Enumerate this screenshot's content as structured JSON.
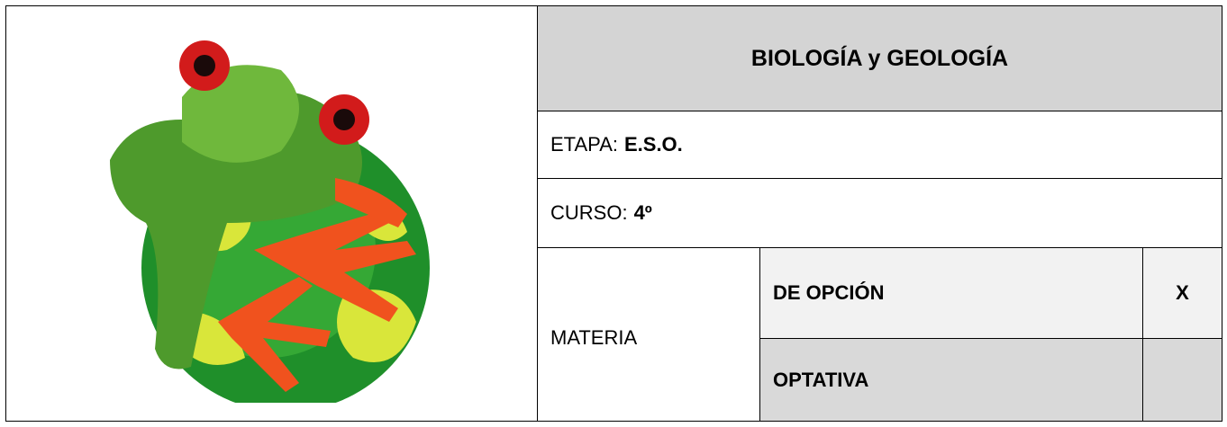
{
  "header": {
    "title": "BIOLOGÍA y GEOLOGÍA"
  },
  "rows": {
    "stage": {
      "label": "ETAPA:",
      "value": "E.S.O."
    },
    "course": {
      "label": "CURSO:",
      "value": "4º"
    },
    "subject": {
      "label": "MATERIA",
      "options": [
        {
          "label": "DE OPCIÓN",
          "mark": "X"
        },
        {
          "label": "OPTATIVA"
        }
      ]
    }
  }
}
